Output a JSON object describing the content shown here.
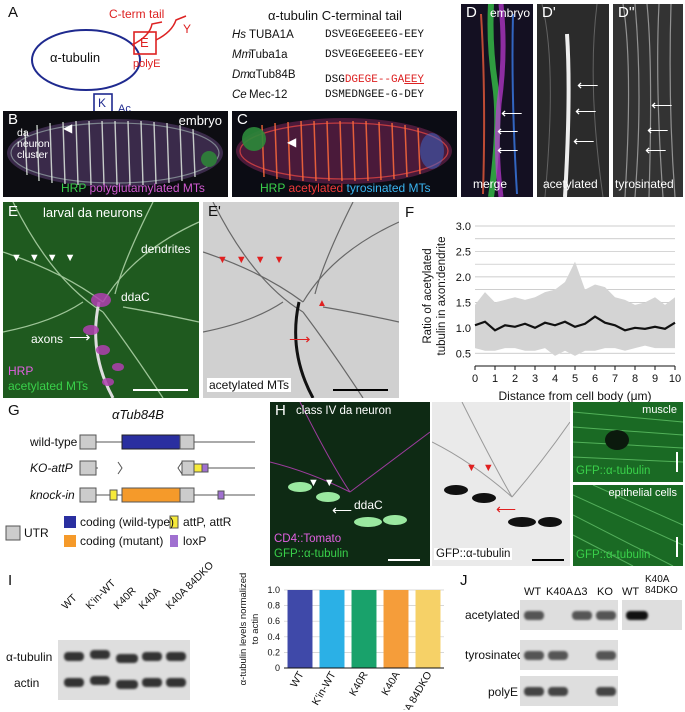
{
  "panels": {
    "A": {
      "label": "A",
      "schematic": {
        "protein": "α-tubulin",
        "ctail": "C-term tail",
        "e_box": "E",
        "polye": "polyE",
        "y": "Y",
        "k_box": "K",
        "ac": "Ac"
      },
      "alignment": {
        "title": "α-tubulin C-terminal tail",
        "rows": [
          {
            "species": "Hs",
            "gene": "TUBA1A",
            "seq_a": "DSVEGEGEEEG-EEY",
            "seq_b": "",
            "seq_c": ""
          },
          {
            "species": "Mm",
            "gene": "Tuba1a",
            "seq_a": "DSVEGEGEEEG-EEY",
            "seq_b": "",
            "seq_c": ""
          },
          {
            "species": "Dm",
            "gene": "αTub84B",
            "seq_a": "DSG",
            "seq_b": "DGEGE--GA",
            "seq_c": "EEY"
          },
          {
            "species": "Ce",
            "gene": "Mec-12",
            "seq_a": "DSMEDNGEE-G-DEY",
            "seq_b": "",
            "seq_c": ""
          }
        ]
      }
    },
    "B": {
      "label": "B",
      "tag": "embryo",
      "annot": "da neuron cluster",
      "stain_1": "HRP",
      "stain_2": "polyglutamylated MTs"
    },
    "C": {
      "label": "C",
      "stain_1": "HRP",
      "stain_2": "acetylated",
      "stain_3": "tyrosinated MTs"
    },
    "D": {
      "label": "D",
      "tag": "embryo",
      "cap_d": "merge",
      "label_d1": "D'",
      "cap_d1": "acetylated",
      "label_d2": "D''",
      "cap_d2": "tyrosinated"
    },
    "E": {
      "label": "E",
      "title": "larval da neurons",
      "dendrites": "dendrites",
      "ddac": "ddaC",
      "axons": "axons",
      "stain_1": "HRP",
      "stain_2": "acetylated MTs",
      "label_e1": "E'",
      "cap_e1": "acetylated MTs"
    },
    "F": {
      "label": "F"
    },
    "G": {
      "label": "G",
      "gene": "αTub84B",
      "rows": [
        "wild-type",
        "KO-attP",
        "knock-in"
      ],
      "legend": {
        "utr": "UTR",
        "coding_wt": "coding (wild-type)",
        "coding_mut": "coding (mutant)",
        "attp": "attP, attR",
        "loxp": "loxP"
      }
    },
    "H": {
      "label": "H",
      "title": "class IV da neuron",
      "ddac": "ddaC",
      "stain_1": "CD4::Tomato",
      "stain_2": "GFP::α-tubulin",
      "cap_gray": "GFP::α-tubulin",
      "muscle": "muscle",
      "cap_muscle": "GFP::α-tubulin",
      "epithelial": "epithelial cells",
      "cap_epi": "GFP::α-tubulin"
    },
    "I": {
      "label": "I",
      "lanes": [
        "WT",
        "K'in-WT",
        "K40R",
        "K40A",
        "K40A 84DKO"
      ],
      "row_1": "α-tubulin",
      "row_2": "actin"
    },
    "J": {
      "label": "J",
      "lanes": [
        "WT",
        "K40A",
        "Δ3",
        "KO"
      ],
      "lanes_2": [
        "WT"
      ],
      "extra_header": "K40A 84DKO",
      "rows": [
        "acetylated",
        "tyrosinated",
        "polyE"
      ]
    }
  },
  "chart_data": [
    {
      "type": "line",
      "panel": "F",
      "title": "",
      "xlabel": "Distance from cell body (μm)",
      "ylabel": "Ratio of acetylated tubulin in axon:dendrite",
      "xlim": [
        0,
        10
      ],
      "ylim": [
        0.25,
        3.0
      ],
      "xticks": [
        0,
        0.5,
        1,
        1.5,
        2,
        2.5,
        3,
        3.5,
        4,
        4.5,
        5,
        5.5,
        6,
        6.5,
        7,
        7.5,
        8,
        8.5,
        9,
        9.5,
        10
      ],
      "yticks": [
        0.5,
        0.75,
        1.0,
        1.25,
        1.5,
        1.75,
        2.0,
        2.25,
        2.5,
        2.75,
        3.0
      ],
      "ytick_labels": [
        "0.5",
        "",
        "1.0",
        "",
        "1.5",
        "",
        "2.0",
        "",
        "2.5",
        "",
        "3.0"
      ],
      "grid": true,
      "x": [
        0,
        0.5,
        1,
        1.5,
        2,
        2.5,
        3,
        3.5,
        4,
        4.5,
        5,
        5.5,
        6,
        6.5,
        7,
        7.5,
        8,
        8.5,
        9,
        9.5,
        10
      ],
      "series": [
        {
          "values": [
            1.05,
            1.12,
            0.95,
            1.05,
            1.02,
            1.08,
            1.0,
            1.1,
            1.05,
            1.12,
            1.02,
            1.08,
            1.22,
            1.1,
            1.05,
            0.95,
            1.0,
            0.98,
            1.02,
            0.98,
            1.1
          ]
        },
        {
          "values": [
            1.45,
            1.7,
            1.5,
            1.55,
            1.6,
            1.55,
            1.6,
            1.7,
            1.75,
            1.9,
            2.3,
            1.75,
            1.85,
            1.8,
            1.6,
            1.55,
            1.45,
            1.5,
            1.6,
            1.45,
            1.6
          ]
        },
        {
          "values": [
            0.6,
            0.55,
            0.55,
            0.6,
            0.6,
            0.55,
            0.55,
            0.6,
            0.45,
            0.55,
            0.45,
            0.55,
            0.55,
            0.6,
            0.6,
            0.55,
            0.6,
            0.65,
            0.6,
            0.6,
            0.6
          ]
        }
      ],
      "colors": {
        "mean": "#111111",
        "range": "#d4d4d4",
        "grid": "#bdbdbd"
      }
    },
    {
      "type": "bar",
      "panel": "I",
      "title": "",
      "xlabel": "",
      "ylabel": "α-tubulin levels normalized to actin",
      "categories": [
        "WT",
        "K'in-WT",
        "K40R",
        "K40A",
        "K40A 84DKO"
      ],
      "values": [
        1.0,
        1.0,
        1.0,
        1.0,
        1.0
      ],
      "ylim": [
        0,
        1.0
      ],
      "yticks": [
        0,
        0.2,
        0.4,
        0.6,
        0.8,
        1.0
      ],
      "ytick_labels": [
        "0",
        "0.2",
        "0.4",
        "0.6",
        "0.8",
        "1.0"
      ],
      "colors": [
        "#3f49a9",
        "#2bb0e6",
        "#19a26b",
        "#f59d3a",
        "#f6d167"
      ],
      "grid": true
    }
  ]
}
